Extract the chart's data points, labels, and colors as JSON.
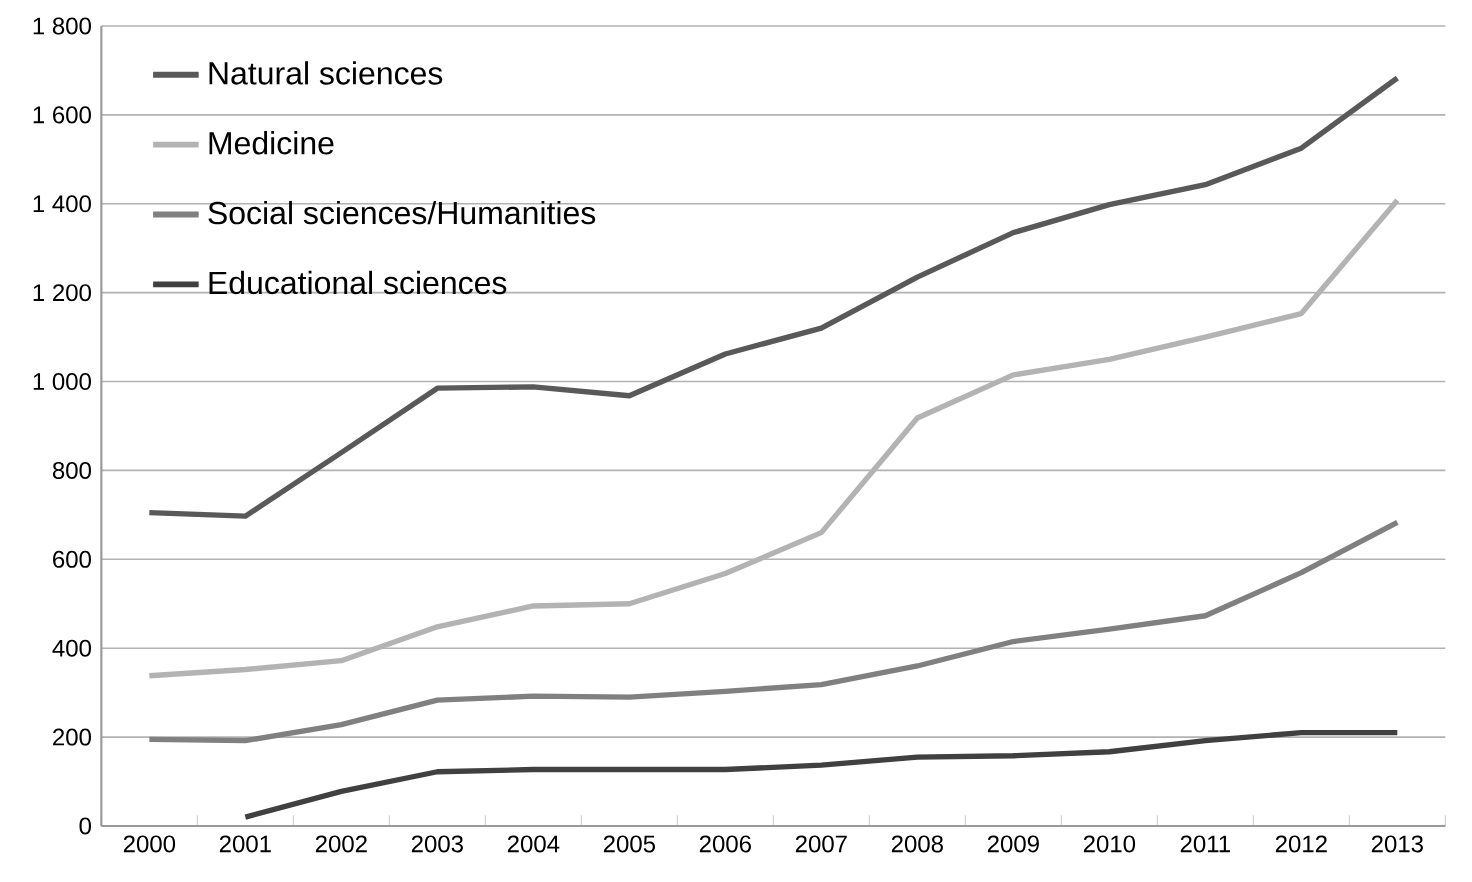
{
  "chart_data": {
    "type": "line",
    "categories": [
      "2000",
      "2001",
      "2002",
      "2003",
      "2004",
      "2005",
      "2006",
      "2007",
      "2008",
      "2009",
      "2010",
      "2011",
      "2012",
      "2013"
    ],
    "series": [
      {
        "name": "Natural sciences",
        "color": "#595959",
        "values": [
          705,
          697,
          840,
          985,
          988,
          968,
          1062,
          1120,
          1235,
          1335,
          1398,
          1443,
          1525,
          1683
        ]
      },
      {
        "name": "Medicine",
        "color": "#b3b3b3",
        "values": [
          338,
          352,
          372,
          448,
          495,
          500,
          568,
          660,
          918,
          1015,
          1050,
          1100,
          1153,
          1408
        ]
      },
      {
        "name": "Social sciences/Humanities",
        "color": "#808080",
        "values": [
          195,
          192,
          228,
          283,
          292,
          290,
          303,
          318,
          360,
          415,
          443,
          473,
          570,
          683
        ]
      },
      {
        "name": "Educational sciences",
        "color": "#404040",
        "values": [
          null,
          20,
          78,
          122,
          127,
          127,
          127,
          137,
          155,
          158,
          167,
          192,
          210,
          210
        ]
      }
    ],
    "ylim": [
      0,
      1800
    ],
    "yticks": [
      0,
      200,
      400,
      600,
      800,
      {
        "value": 1000,
        "label": "1 000"
      },
      {
        "value": 1200,
        "label": "1 200"
      },
      {
        "value": 1400,
        "label": "1 400"
      },
      {
        "value": 1600,
        "label": "1 600"
      },
      {
        "value": 1800,
        "label": "1 800"
      }
    ],
    "grid": "y",
    "legend": "top left",
    "marker": "none",
    "line_style": "solid"
  }
}
